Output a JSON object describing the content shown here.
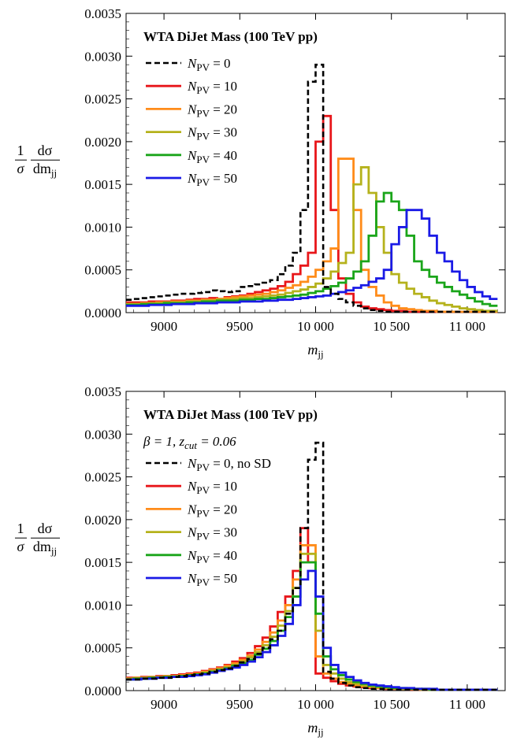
{
  "chart_data": [
    {
      "type": "line",
      "title": "WTA DiJet Mass (100 TeV pp)",
      "subtitle": "",
      "xlabel": "m",
      "xlabel_sub": "jj",
      "ylabel": {
        "num": "1",
        "den": "σ",
        "frac_num": "dσ",
        "frac_den": "dm",
        "frac_den_sub": "jj"
      },
      "xlim": [
        8750,
        11250
      ],
      "ylim": [
        0,
        0.0035
      ],
      "xticks": [
        9000,
        9500,
        10000,
        10500,
        11000
      ],
      "xtick_labels": [
        "9000",
        "9500",
        "10 000",
        "10 500",
        "11 000"
      ],
      "yticks": [
        0,
        0.0005,
        0.001,
        0.0015,
        0.002,
        0.0025,
        0.003,
        0.0035
      ],
      "ytick_labels": [
        "0.0000",
        "0.0005",
        "0.0010",
        "0.0015",
        "0.0020",
        "0.0025",
        "0.0030",
        "0.0035"
      ],
      "legend_position": "top-left",
      "bin_edges": [
        8750,
        8800,
        8850,
        8900,
        8950,
        9000,
        9050,
        9100,
        9150,
        9200,
        9250,
        9300,
        9350,
        9400,
        9450,
        9500,
        9550,
        9600,
        9650,
        9700,
        9750,
        9800,
        9850,
        9900,
        9950,
        10000,
        10050,
        10100,
        10150,
        10200,
        10250,
        10300,
        10350,
        10400,
        10450,
        10500,
        10550,
        10600,
        10650,
        10700,
        10750,
        10800,
        10850,
        10900,
        10950,
        11000,
        11050,
        11100,
        11150,
        11200
      ],
      "series": [
        {
          "label_main": "N",
          "label_sub": "PV",
          "label_rest": " = 0",
          "color": "#000000",
          "dashed": true,
          "values": [
            0.00015,
            0.00016,
            0.00017,
            0.00018,
            0.00019,
            0.0002,
            0.00021,
            0.00022,
            0.00022,
            0.00023,
            0.00024,
            0.00026,
            0.00025,
            0.00024,
            0.00025,
            0.0003,
            0.00031,
            0.00033,
            0.00035,
            0.00038,
            0.00045,
            0.00055,
            0.0007,
            0.0012,
            0.0027,
            0.0029,
            0.0003,
            0.00022,
            0.00016,
            0.00012,
            8e-05,
            5e-05,
            3e-05,
            2e-05,
            1e-05,
            1e-05,
            1e-05,
            1e-05,
            1e-05,
            1e-05,
            1e-05,
            1e-05,
            1e-05,
            1e-05,
            1e-05,
            1e-05,
            1e-05,
            1e-05,
            1e-05
          ]
        },
        {
          "label_main": "N",
          "label_sub": "PV",
          "label_rest": " = 10",
          "color": "#e8161a",
          "dashed": false,
          "values": [
            0.00012,
            0.00012,
            0.00012,
            0.00013,
            0.00013,
            0.00013,
            0.00014,
            0.00014,
            0.00015,
            0.00016,
            0.00016,
            0.00017,
            0.00016,
            0.00018,
            0.00019,
            0.0002,
            0.00022,
            0.00024,
            0.00026,
            0.00028,
            0.00031,
            0.00036,
            0.00045,
            0.00055,
            0.0007,
            0.002,
            0.0023,
            0.0012,
            0.0004,
            0.00022,
            0.00012,
            7e-05,
            5e-05,
            4e-05,
            3e-05,
            2e-05,
            2e-05,
            1e-05,
            1e-05,
            1e-05,
            1e-05,
            1e-05,
            1e-05,
            1e-05,
            1e-05,
            1e-05,
            1e-05,
            1e-05,
            1e-05
          ]
        },
        {
          "label_main": "N",
          "label_sub": "PV",
          "label_rest": " = 20",
          "color": "#ff8c1a",
          "dashed": false,
          "values": [
            0.0001,
            0.0001,
            0.00011,
            0.00011,
            0.00012,
            0.00012,
            0.00013,
            0.00013,
            0.00014,
            0.00014,
            0.00015,
            0.00015,
            0.00016,
            0.00017,
            0.00018,
            0.00019,
            0.0002,
            0.00021,
            0.00022,
            0.00024,
            0.00026,
            0.00029,
            0.00032,
            0.00036,
            0.00042,
            0.0005,
            0.0006,
            0.00075,
            0.0018,
            0.0018,
            0.0012,
            0.0005,
            0.0003,
            0.0002,
            0.00012,
            8e-05,
            5e-05,
            4e-05,
            3e-05,
            2e-05,
            2e-05,
            1e-05,
            1e-05,
            1e-05,
            1e-05,
            1e-05,
            1e-05,
            1e-05,
            1e-05
          ]
        },
        {
          "label_main": "N",
          "label_sub": "PV",
          "label_rest": " = 30",
          "color": "#b5b21c",
          "dashed": false,
          "values": [
            0.0001,
            0.0001,
            0.0001,
            0.00011,
            0.00011,
            0.00012,
            0.00012,
            0.00012,
            0.00013,
            0.00013,
            0.00014,
            0.00014,
            0.00015,
            0.00015,
            0.00016,
            0.00017,
            0.00017,
            0.00018,
            0.00019,
            0.0002,
            0.00021,
            0.00023,
            0.00025,
            0.00027,
            0.0003,
            0.00034,
            0.0004,
            0.00048,
            0.00058,
            0.0007,
            0.0015,
            0.0017,
            0.0014,
            0.001,
            0.0007,
            0.00045,
            0.00035,
            0.00028,
            0.00022,
            0.00018,
            0.00014,
            0.00011,
            9e-05,
            7e-05,
            5e-05,
            4e-05,
            3e-05,
            2e-05,
            2e-05
          ]
        },
        {
          "label_main": "N",
          "label_sub": "PV",
          "label_rest": " = 40",
          "color": "#1aa51a",
          "dashed": false,
          "values": [
            9e-05,
            9e-05,
            0.0001,
            0.0001,
            0.0001,
            0.00011,
            0.00011,
            0.00011,
            0.00012,
            0.00012,
            0.00013,
            0.00013,
            0.00014,
            0.00014,
            0.00014,
            0.00015,
            0.00015,
            0.00016,
            0.00016,
            0.00017,
            0.00018,
            0.00019,
            0.0002,
            0.00021,
            0.00023,
            0.00025,
            0.00028,
            0.00031,
            0.00035,
            0.0004,
            0.00048,
            0.0006,
            0.0009,
            0.0013,
            0.0014,
            0.0013,
            0.0012,
            0.0009,
            0.0006,
            0.0005,
            0.00042,
            0.00035,
            0.0003,
            0.00025,
            0.00021,
            0.00017,
            0.00013,
            0.0001,
            8e-05
          ]
        },
        {
          "label_main": "N",
          "label_sub": "PV",
          "label_rest": " = 50",
          "color": "#1a1ae6",
          "dashed": false,
          "values": [
            8e-05,
            8e-05,
            8e-05,
            9e-05,
            9e-05,
            9e-05,
            0.0001,
            0.0001,
            0.0001,
            0.00011,
            0.00011,
            0.00011,
            0.00012,
            0.00012,
            0.00012,
            0.00013,
            0.00013,
            0.00013,
            0.00014,
            0.00014,
            0.00015,
            0.00015,
            0.00016,
            0.00017,
            0.00018,
            0.00019,
            0.0002,
            0.00022,
            0.00024,
            0.00026,
            0.00029,
            0.00032,
            0.00036,
            0.0004,
            0.0005,
            0.0008,
            0.001,
            0.0012,
            0.0012,
            0.0011,
            0.0009,
            0.0007,
            0.0006,
            0.00048,
            0.00038,
            0.0003,
            0.00024,
            0.00019,
            0.00016
          ]
        }
      ]
    },
    {
      "type": "line",
      "title": "WTA DiJet Mass (100 TeV pp)",
      "subtitle": "β = 1, z",
      "subtitle_sub": "cut",
      "subtitle_rest": " = 0.06",
      "xlabel": "m",
      "xlabel_sub": "jj",
      "ylabel": {
        "num": "1",
        "den": "σ",
        "frac_num": "dσ",
        "frac_den": "dm",
        "frac_den_sub": "jj"
      },
      "xlim": [
        8750,
        11250
      ],
      "ylim": [
        0,
        0.0035
      ],
      "xticks": [
        9000,
        9500,
        10000,
        10500,
        11000
      ],
      "xtick_labels": [
        "9000",
        "9500",
        "10 000",
        "10 500",
        "11 000"
      ],
      "yticks": [
        0,
        0.0005,
        0.001,
        0.0015,
        0.002,
        0.0025,
        0.003,
        0.0035
      ],
      "ytick_labels": [
        "0.0000",
        "0.0005",
        "0.0010",
        "0.0015",
        "0.0020",
        "0.0025",
        "0.0030",
        "0.0035"
      ],
      "legend_position": "top-left",
      "bin_edges": [
        8750,
        8800,
        8850,
        8900,
        8950,
        9000,
        9050,
        9100,
        9150,
        9200,
        9250,
        9300,
        9350,
        9400,
        9450,
        9500,
        9550,
        9600,
        9650,
        9700,
        9750,
        9800,
        9850,
        9900,
        9950,
        10000,
        10050,
        10100,
        10150,
        10200,
        10250,
        10300,
        10350,
        10400,
        10450,
        10500,
        10550,
        10600,
        10650,
        10700,
        10750,
        10800,
        10850,
        10900,
        10950,
        11000,
        11050,
        11100,
        11150,
        11200
      ],
      "series": [
        {
          "label_main": "N",
          "label_sub": "PV",
          "label_rest": " = 0, no SD",
          "color": "#000000",
          "dashed": true,
          "values": [
            0.00013,
            0.00013,
            0.00014,
            0.00014,
            0.00015,
            0.00015,
            0.00016,
            0.00017,
            0.00018,
            0.00019,
            0.0002,
            0.00022,
            0.00024,
            0.00026,
            0.00029,
            0.00033,
            0.00037,
            0.00043,
            0.0005,
            0.0006,
            0.0007,
            0.0009,
            0.0012,
            0.0019,
            0.0027,
            0.0029,
            0.00022,
            0.00014,
            9e-05,
            6e-05,
            4e-05,
            3e-05,
            2e-05,
            2e-05,
            1e-05,
            1e-05,
            1e-05,
            1e-05,
            1e-05,
            1e-05,
            1e-05,
            1e-05,
            1e-05,
            1e-05,
            1e-05,
            1e-05,
            1e-05,
            1e-05,
            1e-05
          ]
        },
        {
          "label_main": "N",
          "label_sub": "PV",
          "label_rest": " = 10",
          "color": "#e8161a",
          "dashed": false,
          "values": [
            0.00015,
            0.00015,
            0.00016,
            0.00016,
            0.00017,
            0.00017,
            0.00018,
            0.00019,
            0.0002,
            0.00021,
            0.00023,
            0.00025,
            0.00027,
            0.0003,
            0.00034,
            0.00038,
            0.00044,
            0.00052,
            0.00062,
            0.00075,
            0.00092,
            0.0011,
            0.0014,
            0.0019,
            0.0015,
            0.0002,
            0.00015,
            0.00011,
            8e-05,
            6e-05,
            5e-05,
            4e-05,
            3e-05,
            3e-05,
            2e-05,
            2e-05,
            2e-05,
            1e-05,
            1e-05,
            1e-05,
            1e-05,
            1e-05,
            1e-05,
            1e-05,
            1e-05,
            1e-05,
            1e-05,
            1e-05,
            1e-05
          ]
        },
        {
          "label_main": "N",
          "label_sub": "PV",
          "label_rest": " = 20",
          "color": "#ff8c1a",
          "dashed": false,
          "values": [
            0.00014,
            0.00015,
            0.00015,
            0.00016,
            0.00016,
            0.00017,
            0.00017,
            0.00018,
            0.00019,
            0.0002,
            0.00022,
            0.00024,
            0.00026,
            0.00029,
            0.00032,
            0.00036,
            0.00041,
            0.00048,
            0.00057,
            0.00068,
            0.00082,
            0.001,
            0.0013,
            0.0017,
            0.0017,
            0.0004,
            0.0002,
            0.00014,
            0.0001,
            8e-05,
            6e-05,
            5e-05,
            4e-05,
            3e-05,
            3e-05,
            2e-05,
            2e-05,
            2e-05,
            1e-05,
            1e-05,
            1e-05,
            1e-05,
            1e-05,
            1e-05,
            1e-05,
            1e-05,
            1e-05,
            1e-05,
            1e-05
          ]
        },
        {
          "label_main": "N",
          "label_sub": "PV",
          "label_rest": " = 30",
          "color": "#b5b21c",
          "dashed": false,
          "values": [
            0.00014,
            0.00014,
            0.00015,
            0.00015,
            0.00016,
            0.00016,
            0.00017,
            0.00017,
            0.00018,
            0.00019,
            0.00021,
            0.00023,
            0.00025,
            0.00027,
            0.0003,
            0.00034,
            0.00039,
            0.00045,
            0.00053,
            0.00063,
            0.00076,
            0.00093,
            0.0012,
            0.0016,
            0.0016,
            0.0007,
            0.0003,
            0.0002,
            0.00014,
            0.0001,
            8e-05,
            6e-05,
            5e-05,
            4e-05,
            3e-05,
            3e-05,
            2e-05,
            2e-05,
            2e-05,
            1e-05,
            1e-05,
            1e-05,
            1e-05,
            1e-05,
            1e-05,
            1e-05,
            1e-05,
            1e-05,
            1e-05
          ]
        },
        {
          "label_main": "N",
          "label_sub": "PV",
          "label_rest": " = 40",
          "color": "#1aa51a",
          "dashed": false,
          "values": [
            0.00013,
            0.00014,
            0.00014,
            0.00015,
            0.00015,
            0.00016,
            0.00016,
            0.00017,
            0.00018,
            0.00019,
            0.0002,
            0.00022,
            0.00024,
            0.00026,
            0.00029,
            0.00032,
            0.00036,
            0.00042,
            0.00049,
            0.00058,
            0.0007,
            0.00086,
            0.0011,
            0.0015,
            0.0015,
            0.0009,
            0.0004,
            0.00025,
            0.00018,
            0.00013,
            0.0001,
            8e-05,
            6e-05,
            5e-05,
            4e-05,
            3e-05,
            3e-05,
            2e-05,
            2e-05,
            2e-05,
            1e-05,
            1e-05,
            1e-05,
            1e-05,
            1e-05,
            1e-05,
            1e-05,
            1e-05,
            1e-05
          ]
        },
        {
          "label_main": "N",
          "label_sub": "PV",
          "label_rest": " = 50",
          "color": "#1a1ae6",
          "dashed": false,
          "values": [
            0.00013,
            0.00013,
            0.00014,
            0.00014,
            0.00015,
            0.00015,
            0.00016,
            0.00016,
            0.00017,
            0.00018,
            0.00019,
            0.00021,
            0.00023,
            0.00025,
            0.00027,
            0.0003,
            0.00034,
            0.00039,
            0.00045,
            0.00053,
            0.00064,
            0.00078,
            0.001,
            0.0013,
            0.0014,
            0.0011,
            0.0005,
            0.0003,
            0.00021,
            0.00016,
            0.00012,
            9e-05,
            7e-05,
            6e-05,
            5e-05,
            4e-05,
            3e-05,
            3e-05,
            2e-05,
            2e-05,
            2e-05,
            1e-05,
            1e-05,
            1e-05,
            1e-05,
            1e-05,
            1e-05,
            1e-05,
            1e-05
          ]
        }
      ]
    }
  ]
}
